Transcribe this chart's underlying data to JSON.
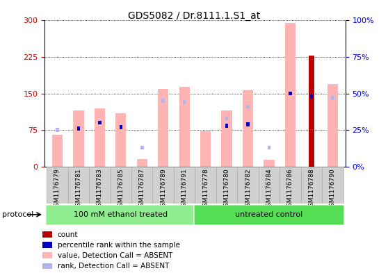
{
  "title": "GDS5082 / Dr.8111.1.S1_at",
  "samples": [
    "GSM1176779",
    "GSM1176781",
    "GSM1176783",
    "GSM1176785",
    "GSM1176787",
    "GSM1176789",
    "GSM1176791",
    "GSM1176778",
    "GSM1176780",
    "GSM1176782",
    "GSM1176784",
    "GSM1176786",
    "GSM1176788",
    "GSM1176790"
  ],
  "value_absent": [
    65,
    115,
    120,
    110,
    15,
    160,
    163,
    72,
    115,
    157,
    14,
    295,
    0,
    170
  ],
  "rank_absent_pct": [
    25,
    0,
    0,
    0,
    13,
    45,
    44,
    0,
    33,
    41,
    13,
    0,
    0,
    47
  ],
  "count_value": [
    0,
    0,
    0,
    0,
    0,
    0,
    0,
    0,
    0,
    0,
    0,
    0,
    228,
    0
  ],
  "rank_pct": [
    0,
    26,
    30,
    27,
    0,
    0,
    0,
    0,
    28,
    29,
    0,
    50,
    48,
    0
  ],
  "groups": [
    {
      "label": "100 mM ethanol treated",
      "start": 0,
      "end": 7
    },
    {
      "label": "untreated control",
      "start": 7,
      "end": 14
    }
  ],
  "ylim_left": [
    0,
    300
  ],
  "ylim_right": [
    0,
    100
  ],
  "yticks_left": [
    0,
    75,
    150,
    225,
    300
  ],
  "ytick_labels_left": [
    "0",
    "75",
    "150",
    "225",
    "300"
  ],
  "yticks_right": [
    0,
    25,
    50,
    75,
    100
  ],
  "ytick_labels_right": [
    "0%",
    "25%",
    "50%",
    "75%",
    "100%"
  ],
  "color_value_absent": "#ffb3b3",
  "color_rank_absent": "#b3b3ee",
  "color_count": "#bb0000",
  "color_rank": "#0000bb",
  "group_green_light": "#90ee90",
  "group_green_dark": "#55dd55",
  "axis_label_color_left": "#cc0000",
  "axis_label_color_right": "#0000cc",
  "tick_bg_color": "#d0d0d0"
}
